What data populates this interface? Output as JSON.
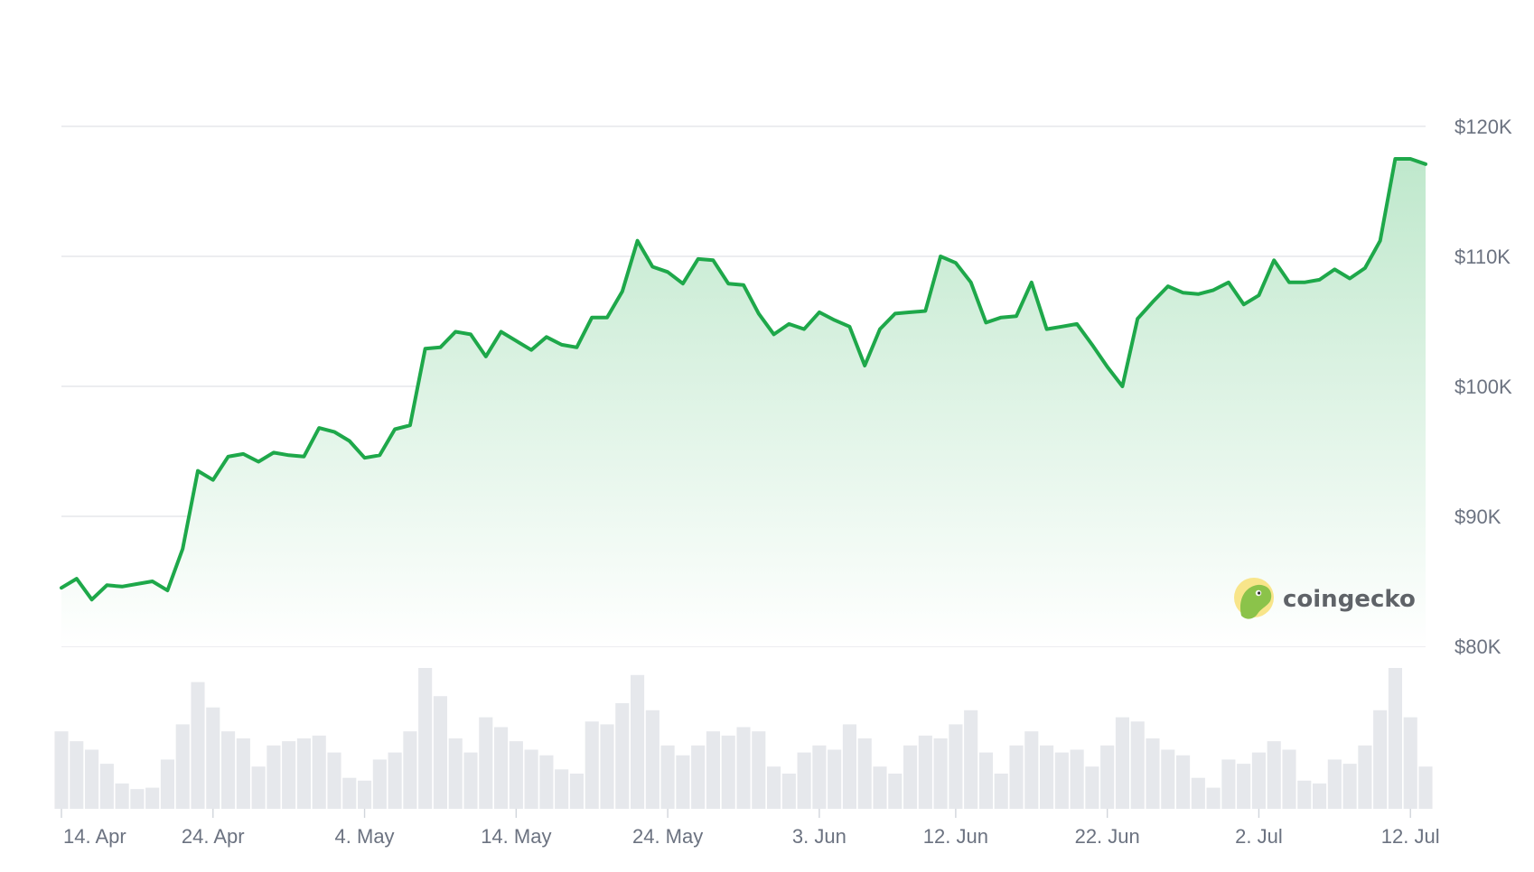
{
  "chart_data": {
    "type": "area",
    "title": "",
    "xlabel": "",
    "ylabel": "",
    "ylim": [
      80000,
      120000
    ],
    "grid": true,
    "y_ticks": [
      {
        "value": 120000,
        "label": "$120K"
      },
      {
        "value": 110000,
        "label": "$110K"
      },
      {
        "value": 100000,
        "label": "$100K"
      },
      {
        "value": 90000,
        "label": "$90K"
      },
      {
        "value": 80000,
        "label": "$80K"
      }
    ],
    "x_ticks": [
      {
        "date": "2025-04-14",
        "label": "14. Apr"
      },
      {
        "date": "2025-04-24",
        "label": "24. Apr"
      },
      {
        "date": "2025-05-04",
        "label": "4. May"
      },
      {
        "date": "2025-05-14",
        "label": "14. May"
      },
      {
        "date": "2025-05-24",
        "label": "24. May"
      },
      {
        "date": "2025-06-03",
        "label": "3. Jun"
      },
      {
        "date": "2025-06-12",
        "label": "12. Jun"
      },
      {
        "date": "2025-06-22",
        "label": "22. Jun"
      },
      {
        "date": "2025-07-02",
        "label": "2. Jul"
      },
      {
        "date": "2025-07-12",
        "label": "12. Jul"
      }
    ],
    "x_range": [
      "2025-04-14",
      "2025-07-13"
    ],
    "price_series": [
      [
        "2025-04-14",
        84500
      ],
      [
        "2025-04-15",
        85200
      ],
      [
        "2025-04-16",
        83600
      ],
      [
        "2025-04-17",
        84700
      ],
      [
        "2025-04-18",
        84600
      ],
      [
        "2025-04-19",
        84800
      ],
      [
        "2025-04-20",
        85000
      ],
      [
        "2025-04-21",
        84300
      ],
      [
        "2025-04-22",
        87500
      ],
      [
        "2025-04-23",
        93500
      ],
      [
        "2025-04-24",
        92800
      ],
      [
        "2025-04-25",
        94600
      ],
      [
        "2025-04-26",
        94800
      ],
      [
        "2025-04-27",
        94200
      ],
      [
        "2025-04-28",
        94900
      ],
      [
        "2025-04-29",
        94700
      ],
      [
        "2025-04-30",
        94600
      ],
      [
        "2025-05-01",
        96800
      ],
      [
        "2025-05-02",
        96500
      ],
      [
        "2025-05-03",
        95800
      ],
      [
        "2025-05-04",
        94500
      ],
      [
        "2025-05-05",
        94700
      ],
      [
        "2025-05-06",
        96700
      ],
      [
        "2025-05-07",
        97000
      ],
      [
        "2025-05-08",
        102900
      ],
      [
        "2025-05-09",
        103000
      ],
      [
        "2025-05-10",
        104200
      ],
      [
        "2025-05-11",
        104000
      ],
      [
        "2025-05-12",
        102300
      ],
      [
        "2025-05-13",
        104200
      ],
      [
        "2025-05-14",
        103500
      ],
      [
        "2025-05-15",
        102800
      ],
      [
        "2025-05-16",
        103800
      ],
      [
        "2025-05-17",
        103200
      ],
      [
        "2025-05-18",
        103000
      ],
      [
        "2025-05-19",
        105300
      ],
      [
        "2025-05-20",
        105300
      ],
      [
        "2025-05-21",
        107300
      ],
      [
        "2025-05-22",
        111200
      ],
      [
        "2025-05-23",
        109200
      ],
      [
        "2025-05-24",
        108800
      ],
      [
        "2025-05-25",
        107900
      ],
      [
        "2025-05-26",
        109800
      ],
      [
        "2025-05-27",
        109700
      ],
      [
        "2025-05-28",
        107900
      ],
      [
        "2025-05-29",
        107800
      ],
      [
        "2025-05-30",
        105600
      ],
      [
        "2025-05-31",
        104000
      ],
      [
        "2025-06-01",
        104800
      ],
      [
        "2025-06-02",
        104400
      ],
      [
        "2025-06-03",
        105700
      ],
      [
        "2025-06-04",
        105100
      ],
      [
        "2025-06-05",
        104600
      ],
      [
        "2025-06-06",
        101600
      ],
      [
        "2025-06-07",
        104400
      ],
      [
        "2025-06-08",
        105600
      ],
      [
        "2025-06-09",
        105700
      ],
      [
        "2025-06-10",
        105800
      ],
      [
        "2025-06-11",
        110000
      ],
      [
        "2025-06-12",
        109500
      ],
      [
        "2025-06-13",
        108000
      ],
      [
        "2025-06-14",
        104900
      ],
      [
        "2025-06-15",
        105300
      ],
      [
        "2025-06-16",
        105400
      ],
      [
        "2025-06-17",
        108000
      ],
      [
        "2025-06-18",
        104400
      ],
      [
        "2025-06-19",
        104600
      ],
      [
        "2025-06-20",
        104800
      ],
      [
        "2025-06-21",
        103200
      ],
      [
        "2025-06-22",
        101500
      ],
      [
        "2025-06-23",
        100000
      ],
      [
        "2025-06-24",
        105200
      ],
      [
        "2025-06-25",
        106500
      ],
      [
        "2025-06-26",
        107700
      ],
      [
        "2025-06-27",
        107200
      ],
      [
        "2025-06-28",
        107100
      ],
      [
        "2025-06-29",
        107400
      ],
      [
        "2025-06-30",
        108000
      ],
      [
        "2025-07-01",
        106300
      ],
      [
        "2025-07-02",
        107000
      ],
      [
        "2025-07-03",
        109700
      ],
      [
        "2025-07-04",
        108000
      ],
      [
        "2025-07-05",
        108000
      ],
      [
        "2025-07-06",
        108200
      ],
      [
        "2025-07-07",
        109000
      ],
      [
        "2025-07-08",
        108300
      ],
      [
        "2025-07-09",
        109100
      ],
      [
        "2025-07-10",
        111200
      ],
      [
        "2025-07-11",
        117500
      ],
      [
        "2025-07-12",
        117500
      ],
      [
        "2025-07-13",
        117100
      ]
    ],
    "volume_series": [
      [
        "2025-04-14",
        0.55
      ],
      [
        "2025-04-15",
        0.48
      ],
      [
        "2025-04-16",
        0.42
      ],
      [
        "2025-04-17",
        0.32
      ],
      [
        "2025-04-18",
        0.18
      ],
      [
        "2025-04-19",
        0.14
      ],
      [
        "2025-04-20",
        0.15
      ],
      [
        "2025-04-21",
        0.35
      ],
      [
        "2025-04-22",
        0.6
      ],
      [
        "2025-04-23",
        0.9
      ],
      [
        "2025-04-24",
        0.72
      ],
      [
        "2025-04-25",
        0.55
      ],
      [
        "2025-04-26",
        0.5
      ],
      [
        "2025-04-27",
        0.3
      ],
      [
        "2025-04-28",
        0.45
      ],
      [
        "2025-04-29",
        0.48
      ],
      [
        "2025-04-30",
        0.5
      ],
      [
        "2025-05-01",
        0.52
      ],
      [
        "2025-05-02",
        0.4
      ],
      [
        "2025-05-03",
        0.22
      ],
      [
        "2025-05-04",
        0.2
      ],
      [
        "2025-05-05",
        0.35
      ],
      [
        "2025-05-06",
        0.4
      ],
      [
        "2025-05-07",
        0.55
      ],
      [
        "2025-05-08",
        1.0
      ],
      [
        "2025-05-09",
        0.8
      ],
      [
        "2025-05-10",
        0.5
      ],
      [
        "2025-05-11",
        0.4
      ],
      [
        "2025-05-12",
        0.65
      ],
      [
        "2025-05-13",
        0.58
      ],
      [
        "2025-05-14",
        0.48
      ],
      [
        "2025-05-15",
        0.42
      ],
      [
        "2025-05-16",
        0.38
      ],
      [
        "2025-05-17",
        0.28
      ],
      [
        "2025-05-18",
        0.25
      ],
      [
        "2025-05-19",
        0.62
      ],
      [
        "2025-05-20",
        0.6
      ],
      [
        "2025-05-21",
        0.75
      ],
      [
        "2025-05-22",
        0.95
      ],
      [
        "2025-05-23",
        0.7
      ],
      [
        "2025-05-24",
        0.45
      ],
      [
        "2025-05-25",
        0.38
      ],
      [
        "2025-05-26",
        0.45
      ],
      [
        "2025-05-27",
        0.55
      ],
      [
        "2025-05-28",
        0.52
      ],
      [
        "2025-05-29",
        0.58
      ],
      [
        "2025-05-30",
        0.55
      ],
      [
        "2025-05-31",
        0.3
      ],
      [
        "2025-06-01",
        0.25
      ],
      [
        "2025-06-02",
        0.4
      ],
      [
        "2025-06-03",
        0.45
      ],
      [
        "2025-06-04",
        0.42
      ],
      [
        "2025-06-05",
        0.6
      ],
      [
        "2025-06-06",
        0.5
      ],
      [
        "2025-06-07",
        0.3
      ],
      [
        "2025-06-08",
        0.25
      ],
      [
        "2025-06-09",
        0.45
      ],
      [
        "2025-06-10",
        0.52
      ],
      [
        "2025-06-11",
        0.5
      ],
      [
        "2025-06-12",
        0.6
      ],
      [
        "2025-06-13",
        0.7
      ],
      [
        "2025-06-14",
        0.4
      ],
      [
        "2025-06-15",
        0.25
      ],
      [
        "2025-06-16",
        0.45
      ],
      [
        "2025-06-17",
        0.55
      ],
      [
        "2025-06-18",
        0.45
      ],
      [
        "2025-06-19",
        0.4
      ],
      [
        "2025-06-20",
        0.42
      ],
      [
        "2025-06-21",
        0.3
      ],
      [
        "2025-06-22",
        0.45
      ],
      [
        "2025-06-23",
        0.65
      ],
      [
        "2025-06-24",
        0.62
      ],
      [
        "2025-06-25",
        0.5
      ],
      [
        "2025-06-26",
        0.42
      ],
      [
        "2025-06-27",
        0.38
      ],
      [
        "2025-06-28",
        0.22
      ],
      [
        "2025-06-29",
        0.15
      ],
      [
        "2025-06-30",
        0.35
      ],
      [
        "2025-07-01",
        0.32
      ],
      [
        "2025-07-02",
        0.4
      ],
      [
        "2025-07-03",
        0.48
      ],
      [
        "2025-07-04",
        0.42
      ],
      [
        "2025-07-05",
        0.2
      ],
      [
        "2025-07-06",
        0.18
      ],
      [
        "2025-07-07",
        0.35
      ],
      [
        "2025-07-08",
        0.32
      ],
      [
        "2025-07-09",
        0.45
      ],
      [
        "2025-07-10",
        0.7
      ],
      [
        "2025-07-11",
        1.0
      ],
      [
        "2025-07-12",
        0.65
      ],
      [
        "2025-07-13",
        0.3
      ]
    ],
    "colors": {
      "line": "#1ea84a",
      "area_top": "#bfe8cc",
      "area_bottom": "#ffffff",
      "grid": "#e5e7eb",
      "volume": "#e6e8ec",
      "tick_text": "#6b7280"
    }
  },
  "brand": {
    "name": "coingecko",
    "icon": "gecko-icon",
    "colors": {
      "icon_bg": "#f8e58a",
      "icon_head": "#8bc34a",
      "text": "#5f6368"
    }
  }
}
